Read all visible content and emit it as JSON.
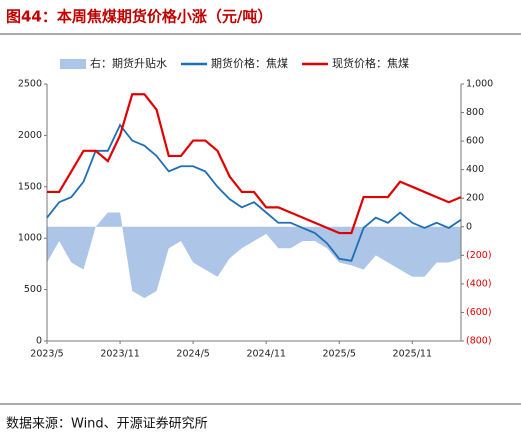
{
  "chart_data": {
    "type": "line",
    "title": "图44：本周焦煤期货价格小涨（元/吨）",
    "source": "数据来源：Wind、开源证券研究所",
    "categories": [
      "2023/5",
      null,
      null,
      null,
      null,
      null,
      "2023/11",
      null,
      null,
      null,
      null,
      null,
      "2024/5",
      null,
      null,
      null,
      null,
      null,
      "2024/11",
      null,
      null,
      null,
      null,
      null,
      "2025/5",
      null,
      null,
      null,
      null,
      null,
      "2025/11",
      null,
      null,
      null,
      null
    ],
    "series": [
      {
        "name": "右：期货升贴水",
        "color": "#adc5e6",
        "axis": "y2",
        "style": "area",
        "values": [
          -250,
          -100,
          -250,
          -300,
          0,
          100,
          100,
          -450,
          -500,
          -450,
          -150,
          -100,
          -250,
          -300,
          -350,
          -220,
          -150,
          -100,
          -50,
          -150,
          -150,
          -100,
          -100,
          -150,
          -250,
          -270,
          -300,
          -200,
          -250,
          -300,
          -350,
          -350,
          -250,
          -250,
          -220
        ]
      },
      {
        "name": "期货价格：焦煤",
        "color": "#1f6fb5",
        "style": "line",
        "values": [
          1200,
          1350,
          1400,
          1550,
          1850,
          1850,
          2100,
          1950,
          1900,
          1800,
          1650,
          1700,
          1700,
          1650,
          1500,
          1380,
          1300,
          1350,
          1250,
          1150,
          1150,
          1100,
          1050,
          950,
          800,
          780,
          1100,
          1200,
          1150,
          1250,
          1150,
          1100,
          1150,
          1100,
          1180
        ]
      },
      {
        "name": "现货价格：焦煤",
        "color": "#e00000",
        "style": "line",
        "values": [
          1450,
          1450,
          1650,
          1850,
          1850,
          1750,
          2000,
          2400,
          2400,
          2250,
          1800,
          1800,
          1950,
          1950,
          1850,
          1600,
          1450,
          1450,
          1300,
          1300,
          1250,
          1200,
          1150,
          1100,
          1050,
          1050,
          1400,
          1400,
          1400,
          1550,
          1500,
          1450,
          1400,
          1350,
          1400
        ]
      }
    ],
    "ylim": [
      0,
      2500
    ],
    "yticks": [
      0,
      500,
      1000,
      1500,
      2000,
      2500
    ],
    "y2lim": [
      -800,
      1000
    ],
    "y2ticks": [
      {
        "value": -800,
        "label": "(800)"
      },
      {
        "value": -600,
        "label": "(600)"
      },
      {
        "value": -400,
        "label": "(400)"
      },
      {
        "value": -200,
        "label": "(200)"
      },
      0,
      200,
      400,
      600,
      800,
      {
        "value": 1000,
        "label": "1,000"
      }
    ],
    "legend": "top"
  }
}
